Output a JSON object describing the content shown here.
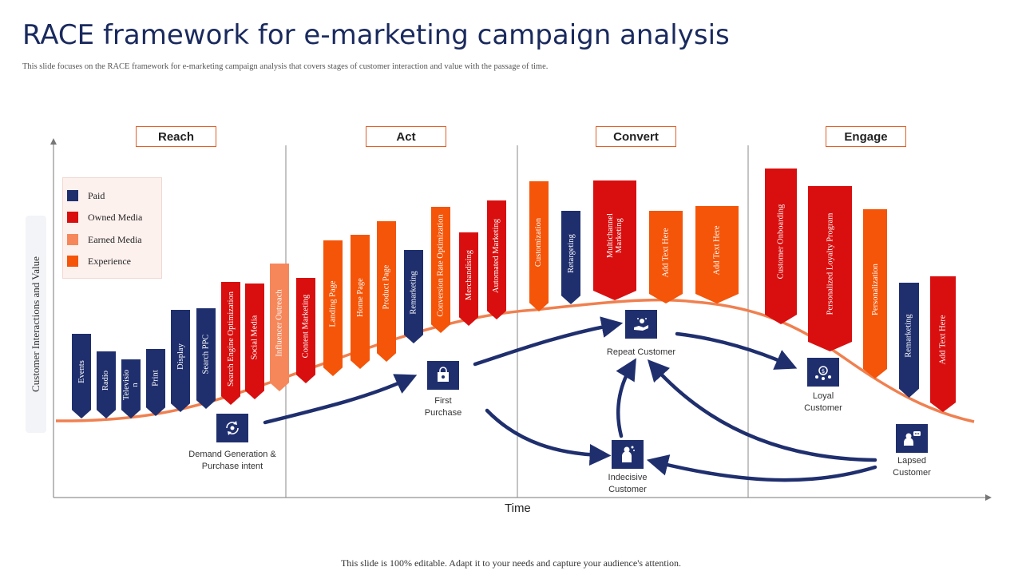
{
  "title": "RACE framework for e-marketing campaign analysis",
  "subtitle": "This slide focuses on the RACE framework for e-marketing campaign analysis that covers stages of customer interaction and value with the passage of time.",
  "footer": "This slide is 100% editable. Adapt it to your needs and capture your audience's attention.",
  "axes": {
    "y_label": "Customer Interactions and Value",
    "x_label": "Time"
  },
  "stages": [
    "Reach",
    "Act",
    "Convert",
    "Engage"
  ],
  "legend": [
    {
      "label": "Paid",
      "color": "#1f2f6e"
    },
    {
      "label": "Owned Media",
      "color": "#d90f0f"
    },
    {
      "label": "Earned Media",
      "color": "#f5875a"
    },
    {
      "label": "Experience",
      "color": "#f45508"
    }
  ],
  "bars": [
    {
      "label": "Events",
      "category": "Paid"
    },
    {
      "label": "Radio",
      "category": "Paid"
    },
    {
      "label": "Televisio n",
      "category": "Paid"
    },
    {
      "label": "Print",
      "category": "Paid"
    },
    {
      "label": "Display",
      "category": "Paid"
    },
    {
      "label": "Search PPC",
      "category": "Paid"
    },
    {
      "label": "Search Engine Optimization",
      "category": "Owned Media"
    },
    {
      "label": "Social Media",
      "category": "Owned Media"
    },
    {
      "label": "Influencer Outreach",
      "category": "Earned Media"
    },
    {
      "label": "Content Marketing",
      "category": "Owned Media"
    },
    {
      "label": "Landing Page",
      "category": "Experience"
    },
    {
      "label": "Home Page",
      "category": "Experience"
    },
    {
      "label": "Product Page",
      "category": "Experience"
    },
    {
      "label": "Remarketing",
      "category": "Paid"
    },
    {
      "label": "Conversion Rate Optimization",
      "category": "Experience"
    },
    {
      "label": "Merchandising",
      "category": "Owned Media"
    },
    {
      "label": "Automated Marketing",
      "category": "Owned Media"
    },
    {
      "label": "Customization",
      "category": "Experience"
    },
    {
      "label": "Retargeting",
      "category": "Paid"
    },
    {
      "label": "Multichannel Marketing",
      "category": "Owned Media"
    },
    {
      "label": "Add Text Here",
      "category": "Experience"
    },
    {
      "label": "Add Text Here",
      "category": "Experience"
    },
    {
      "label": "Customer Onboarding",
      "category": "Owned Media"
    },
    {
      "label": "Personalized Loyalty Program",
      "category": "Owned Media"
    },
    {
      "label": "Personalization",
      "category": "Experience"
    },
    {
      "label": "Remarketing",
      "category": "Paid"
    },
    {
      "label": "Add Text Here",
      "category": "Owned Media"
    }
  ],
  "nodes": [
    {
      "id": "demand",
      "label_lines": [
        "Demand Generation &",
        "Purchase intent"
      ],
      "icon": "cycle-icon"
    },
    {
      "id": "first",
      "label_lines": [
        "First",
        "Purchase"
      ],
      "icon": "shopping-bag-icon"
    },
    {
      "id": "repeat",
      "label_lines": [
        "Repeat Customer"
      ],
      "icon": "hand-coin-icon"
    },
    {
      "id": "indecisive",
      "label_lines": [
        "Indecisive",
        "Customer"
      ],
      "icon": "thinking-person-icon"
    },
    {
      "id": "loyal",
      "label_lines": [
        "Loyal",
        "Customer"
      ],
      "icon": "loyalty-icon"
    },
    {
      "id": "lapsed",
      "label_lines": [
        "Lapsed",
        "Customer"
      ],
      "icon": "chat-person-icon"
    }
  ]
}
